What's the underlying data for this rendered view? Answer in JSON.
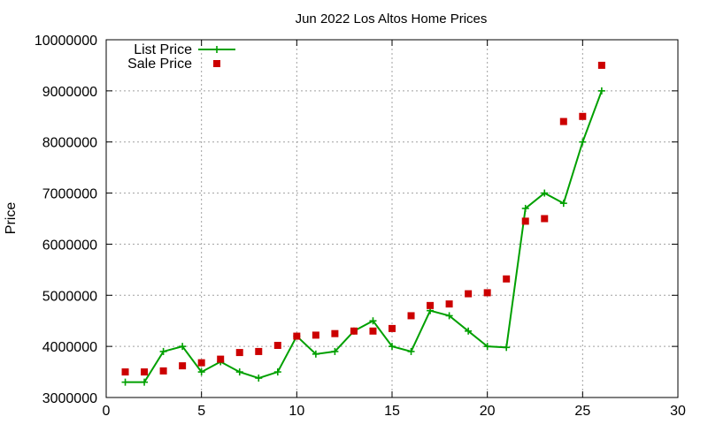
{
  "chart_data": {
    "type": "line",
    "title": "Jun 2022 Los Altos Home Prices",
    "xlabel": "",
    "ylabel": "Price",
    "xlim": [
      0,
      30
    ],
    "ylim": [
      3000000,
      10000000
    ],
    "xticks": [
      0,
      5,
      10,
      15,
      20,
      25,
      30
    ],
    "yticks": [
      3000000,
      4000000,
      5000000,
      6000000,
      7000000,
      8000000,
      9000000,
      10000000
    ],
    "xtick_labels": [
      "0",
      "5",
      "10",
      "15",
      "20",
      "25",
      "30"
    ],
    "ytick_labels": [
      "3000000",
      "4000000",
      "5000000",
      "6000000",
      "7000000",
      "8000000",
      "9000000",
      "10000000"
    ],
    "grid": true,
    "legend_position": "top-left",
    "x": [
      1,
      2,
      3,
      4,
      5,
      6,
      7,
      8,
      9,
      10,
      11,
      12,
      13,
      14,
      15,
      16,
      17,
      18,
      19,
      20,
      21,
      22,
      23,
      24,
      25,
      26
    ],
    "series": [
      {
        "name": "List Price",
        "style": "linespoints",
        "marker": "plus",
        "color": "#00a000",
        "values": [
          3300000,
          3300000,
          3900000,
          4000000,
          3500000,
          3700000,
          3500000,
          3380000,
          3500000,
          4200000,
          3850000,
          3900000,
          4300000,
          4500000,
          4000000,
          3900000,
          4700000,
          4600000,
          4300000,
          4000000,
          3980000,
          6700000,
          7000000,
          6800000,
          8000000,
          9000000
        ]
      },
      {
        "name": "Sale Price",
        "style": "points",
        "marker": "square",
        "color": "#cc0000",
        "values": [
          3500000,
          3500000,
          3520000,
          3620000,
          3680000,
          3750000,
          3880000,
          3900000,
          4020000,
          4200000,
          4220000,
          4250000,
          4300000,
          4300000,
          4350000,
          4600000,
          4800000,
          4830000,
          5030000,
          5050000,
          5320000,
          6450000,
          6500000,
          8400000,
          8500000,
          9500000
        ]
      }
    ]
  }
}
